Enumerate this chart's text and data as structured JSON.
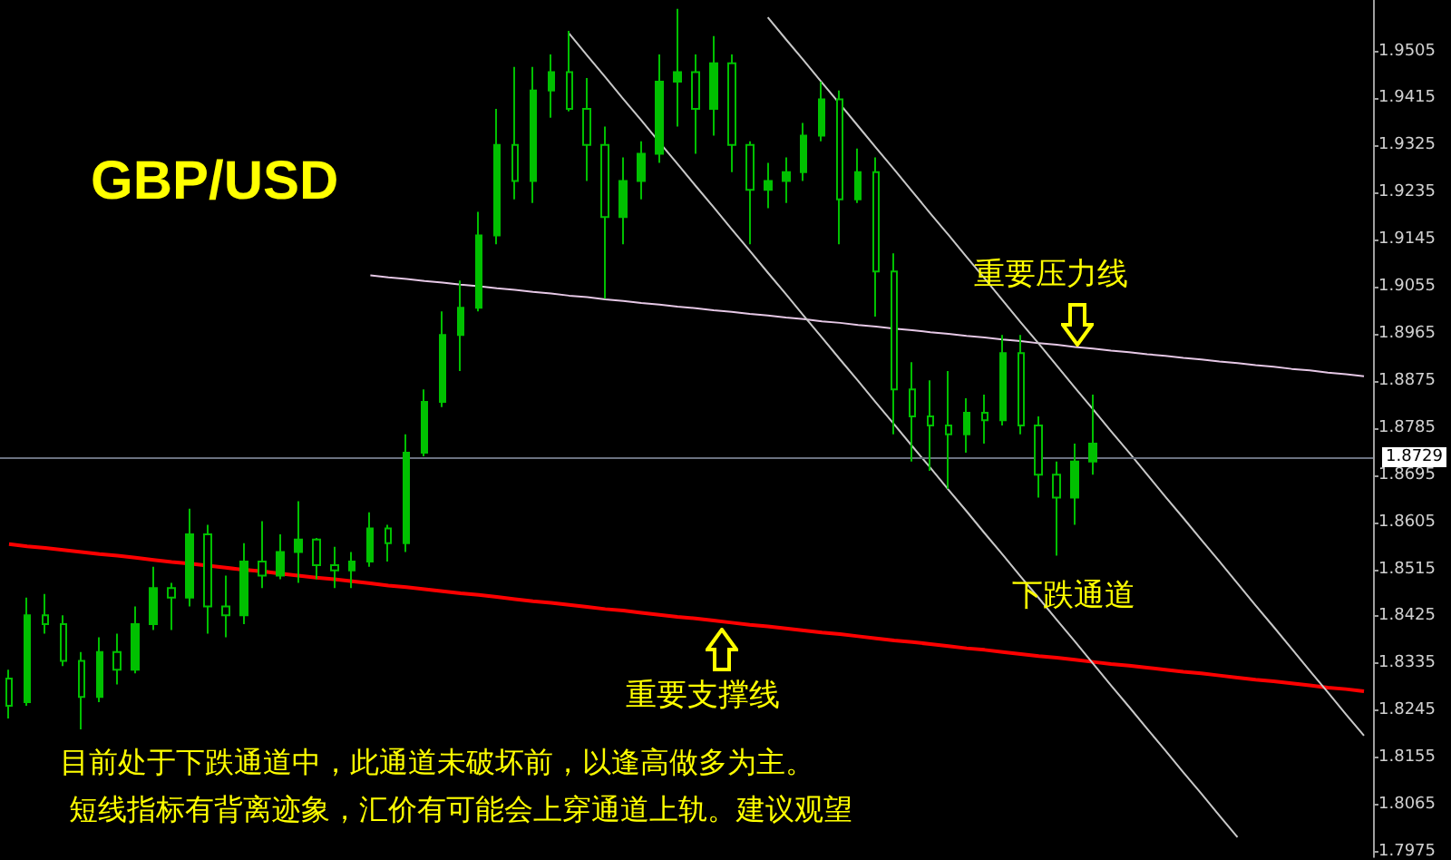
{
  "chart_data": {
    "type": "candlestick",
    "title": "GBP/USD",
    "annotations": [
      "重要压力线",
      "下跌通道",
      "重要支撑线",
      "目前处于下跌通道中，此通道未破坏前，以逢高做多为主。",
      "短线指标有背离迹象，汇价有可能会上穿通道上轨。建议观望"
    ],
    "categories": [
      null,
      null,
      null,
      null,
      null,
      null,
      null,
      null,
      null,
      null,
      null,
      null,
      null,
      null,
      null,
      null,
      null,
      null,
      null,
      null,
      null,
      null,
      null,
      null,
      null,
      null,
      null,
      null,
      null,
      null,
      null,
      null,
      null,
      null,
      null,
      null,
      null,
      null,
      null,
      null,
      null,
      null,
      null,
      null,
      null,
      null,
      null,
      null,
      null,
      null,
      null,
      null,
      null,
      null,
      null,
      null,
      null,
      null,
      null,
      null,
      null,
      null,
      null,
      null,
      null,
      null,
      null,
      null,
      null,
      null,
      null,
      null,
      null,
      null,
      null,
      null
    ],
    "ylim": [
      1.7965,
      1.9603
    ],
    "yticks": [
      1.9505,
      1.9415,
      1.9325,
      1.9235,
      1.9145,
      1.9055,
      1.8965,
      1.8875,
      1.8785,
      1.8695,
      1.8605,
      1.8515,
      1.8425,
      1.8335,
      1.8245,
      1.8155,
      1.8065,
      1.7975
    ],
    "tick_labels": "y",
    "grid": false,
    "color": "#00c000",
    "ohlc": [
      [
        1.8306,
        1.8323,
        1.823,
        1.8254
      ],
      [
        1.8261,
        1.8461,
        1.8254,
        1.8427
      ],
      [
        1.8427,
        1.8468,
        1.8392,
        1.841
      ],
      [
        1.841,
        1.8427,
        1.833,
        1.834
      ],
      [
        1.834,
        1.8357,
        1.8209,
        1.8271
      ],
      [
        1.8271,
        1.8385,
        1.8261,
        1.8357
      ],
      [
        1.8357,
        1.8392,
        1.8295,
        1.8323
      ],
      [
        1.8323,
        1.8444,
        1.8316,
        1.841
      ],
      [
        1.841,
        1.852,
        1.8399,
        1.8479
      ],
      [
        1.8479,
        1.8489,
        1.8399,
        1.8461
      ],
      [
        1.8461,
        1.8631,
        1.8444,
        1.8582
      ],
      [
        1.8582,
        1.86,
        1.8392,
        1.8444
      ],
      [
        1.8444,
        1.8503,
        1.8385,
        1.8427
      ],
      [
        1.8427,
        1.8565,
        1.841,
        1.853
      ],
      [
        1.853,
        1.8607,
        1.8479,
        1.8503
      ],
      [
        1.8503,
        1.8582,
        1.8496,
        1.8548
      ],
      [
        1.8548,
        1.8645,
        1.8489,
        1.8572
      ],
      [
        1.8572,
        1.8575,
        1.8496,
        1.8523
      ],
      [
        1.8523,
        1.8558,
        1.8479,
        1.8513
      ],
      [
        1.8513,
        1.8548,
        1.8479,
        1.853
      ],
      [
        1.853,
        1.8624,
        1.852,
        1.8593
      ],
      [
        1.8593,
        1.86,
        1.853,
        1.8565
      ],
      [
        1.8565,
        1.8773,
        1.8548,
        1.8738
      ],
      [
        1.8738,
        1.8859,
        1.8731,
        1.8835
      ],
      [
        1.8835,
        1.9008,
        1.8825,
        1.8963
      ],
      [
        1.8963,
        1.9067,
        1.8894,
        1.9015
      ],
      [
        1.9015,
        1.9198,
        1.9008,
        1.9153
      ],
      [
        1.9153,
        1.9395,
        1.9136,
        1.9326
      ],
      [
        1.9326,
        1.9475,
        1.9222,
        1.9257
      ],
      [
        1.9257,
        1.9475,
        1.9215,
        1.943
      ],
      [
        1.943,
        1.9499,
        1.9378,
        1.9465
      ],
      [
        1.9465,
        1.9544,
        1.939,
        1.9395
      ],
      [
        1.9395,
        1.9454,
        1.9257,
        1.9326
      ],
      [
        1.9326,
        1.9361,
        1.9032,
        1.9188
      ],
      [
        1.9188,
        1.9302,
        1.9136,
        1.9257
      ],
      [
        1.9257,
        1.9333,
        1.9222,
        1.9309
      ],
      [
        1.9309,
        1.9499,
        1.9292,
        1.9447
      ],
      [
        1.9447,
        1.9586,
        1.9361,
        1.9465
      ],
      [
        1.9465,
        1.9499,
        1.9309,
        1.9395
      ],
      [
        1.9395,
        1.9534,
        1.9344,
        1.9482
      ],
      [
        1.9482,
        1.9499,
        1.9274,
        1.9326
      ],
      [
        1.9326,
        1.9333,
        1.9136,
        1.924
      ],
      [
        1.924,
        1.9292,
        1.9205,
        1.9257
      ],
      [
        1.9257,
        1.9302,
        1.9215,
        1.9274
      ],
      [
        1.9274,
        1.9368,
        1.9257,
        1.9344
      ],
      [
        1.9344,
        1.9447,
        1.9333,
        1.9413
      ],
      [
        1.9413,
        1.943,
        1.9136,
        1.9222
      ],
      [
        1.9222,
        1.9319,
        1.9215,
        1.9274
      ],
      [
        1.9274,
        1.9302,
        1.8998,
        1.9084
      ],
      [
        1.9084,
        1.9119,
        1.8773,
        1.8859
      ],
      [
        1.8859,
        1.8911,
        1.8721,
        1.8807
      ],
      [
        1.8807,
        1.8876,
        1.8703,
        1.879
      ],
      [
        1.879,
        1.8894,
        1.8669,
        1.8773
      ],
      [
        1.8773,
        1.8842,
        1.8738,
        1.8814
      ],
      [
        1.8814,
        1.8849,
        1.8755,
        1.88
      ],
      [
        1.88,
        1.8963,
        1.879,
        1.8928
      ],
      [
        1.8928,
        1.8963,
        1.8773,
        1.879
      ],
      [
        1.879,
        1.8807,
        1.8652,
        1.8696
      ],
      [
        1.8696,
        1.8721,
        1.8541,
        1.8652
      ],
      [
        1.8652,
        1.8755,
        1.86,
        1.8721
      ],
      [
        1.8721,
        1.8849,
        1.8696,
        1.8755
      ],
      null,
      null,
      null,
      null,
      null,
      null,
      null,
      null,
      null,
      null,
      null,
      null,
      null,
      null,
      null
    ],
    "series": [
      {
        "type": "line",
        "color": "#e6c8e6",
        "values": [
          null,
          null,
          null,
          null,
          null,
          null,
          null,
          null,
          null,
          null,
          null,
          null,
          null,
          null,
          null,
          null,
          null,
          null,
          null,
          null,
          1.9077,
          1.9073,
          1.907,
          1.9066,
          1.9063,
          1.9059,
          1.9056,
          1.9052,
          1.9049,
          1.9045,
          1.9042,
          1.9038,
          1.9035,
          1.9031,
          1.9028,
          1.9024,
          1.9021,
          1.9017,
          1.9014,
          1.901,
          1.9007,
          1.9003,
          1.9,
          1.8996,
          1.8993,
          1.8989,
          1.8986,
          1.8982,
          1.8979,
          1.8975,
          1.8972,
          1.8968,
          1.8965,
          1.8961,
          1.8958,
          1.8954,
          1.8951,
          1.8947,
          1.8944,
          1.894,
          1.8937,
          1.8933,
          1.893,
          1.8926,
          1.8923,
          1.8919,
          1.8916,
          1.8912,
          1.8909,
          1.8905,
          1.8902,
          1.8898,
          1.8895,
          1.8891,
          1.8888,
          1.8884
        ]
      },
      {
        "type": "line",
        "color": "#ff0000",
        "values": [
          1.8563,
          1.8559,
          1.8556,
          1.8552,
          1.8548,
          1.8544,
          1.8541,
          1.8537,
          1.8533,
          1.8529,
          1.8526,
          1.8522,
          1.8518,
          1.8514,
          1.8511,
          1.8507,
          1.8503,
          1.8499,
          1.8496,
          1.8492,
          1.8488,
          1.8484,
          1.8481,
          1.8477,
          1.8473,
          1.8469,
          1.8466,
          1.8462,
          1.8458,
          1.8454,
          1.8451,
          1.8447,
          1.8443,
          1.8439,
          1.8436,
          1.8432,
          1.8428,
          1.8424,
          1.8421,
          1.8417,
          1.8413,
          1.8409,
          1.8406,
          1.8402,
          1.8398,
          1.8394,
          1.8391,
          1.8387,
          1.8383,
          1.8379,
          1.8376,
          1.8372,
          1.8368,
          1.8364,
          1.8361,
          1.8357,
          1.8353,
          1.8349,
          1.8346,
          1.8342,
          1.8338,
          1.8334,
          1.8331,
          1.8327,
          1.8323,
          1.8319,
          1.8316,
          1.8312,
          1.8308,
          1.8304,
          1.8301,
          1.8297,
          1.8293,
          1.8289,
          1.8286,
          1.8282
        ]
      },
      {
        "type": "line",
        "color": "#c8c8c8",
        "values": [
          null,
          null,
          null,
          null,
          null,
          null,
          null,
          null,
          null,
          null,
          null,
          null,
          null,
          null,
          null,
          null,
          null,
          null,
          null,
          null,
          null,
          null,
          null,
          null,
          null,
          null,
          null,
          null,
          null,
          null,
          null,
          null,
          null,
          null,
          null,
          null,
          null,
          null,
          null,
          null,
          null,
          null,
          1.957,
          1.9528,
          1.9487,
          1.9445,
          1.9404,
          1.9362,
          1.932,
          1.9279,
          1.9237,
          1.9195,
          1.9154,
          1.9112,
          1.9071,
          1.9029,
          1.8987,
          1.8946,
          1.8904,
          1.8862,
          1.8821,
          1.8779,
          1.8738,
          1.8696,
          1.8654,
          1.8613,
          1.8571,
          1.853,
          1.8488,
          1.8446,
          1.8405,
          1.8363,
          1.8321,
          1.828,
          1.8238,
          1.8197
        ]
      },
      {
        "type": "line",
        "color": "#c8c8c8",
        "values": [
          null,
          null,
          null,
          null,
          null,
          null,
          null,
          null,
          null,
          null,
          null,
          null,
          null,
          null,
          null,
          null,
          null,
          null,
          null,
          null,
          null,
          null,
          null,
          null,
          null,
          null,
          null,
          null,
          null,
          null,
          null,
          1.9539,
          1.9497,
          1.9456,
          1.9414,
          1.9373,
          1.9331,
          1.929,
          1.9248,
          1.9207,
          1.9165,
          1.9124,
          1.9082,
          1.9041,
          1.8999,
          1.8958,
          1.8916,
          1.8875,
          1.8833,
          1.8792,
          1.875,
          1.8709,
          1.8667,
          1.8626,
          1.8584,
          1.8543,
          1.8501,
          1.846,
          1.8418,
          1.8377,
          1.8335,
          1.8293,
          1.8252,
          1.821,
          1.8169,
          1.8127,
          1.8086,
          1.8044,
          1.8003,
          null,
          null,
          null,
          null,
          null,
          null,
          null
        ]
      }
    ],
    "ref_lines": [
      {
        "axis": "y",
        "value": 1.8729,
        "label": "1.8729",
        "color": "#6b7280"
      }
    ]
  }
}
